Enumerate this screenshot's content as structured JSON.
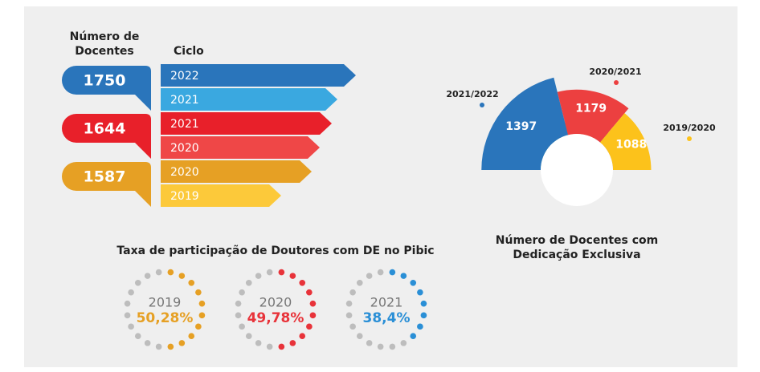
{
  "docentes": {
    "title": [
      "Número de",
      "Docentes"
    ],
    "ciclo_label": "Ciclo",
    "groups": [
      {
        "value": 1750,
        "color": "#2a75bb",
        "cycles": [
          {
            "label": "2022",
            "color": "#2a75bb"
          },
          {
            "label": "2021",
            "color": "#3aa8e0"
          }
        ]
      },
      {
        "value": 1644,
        "color": "#e8202a",
        "cycles": [
          {
            "label": "2021",
            "color": "#e8202a"
          },
          {
            "label": "2020",
            "color": "#ef4747"
          }
        ]
      },
      {
        "value": 1587,
        "color": "#e6a024",
        "cycles": [
          {
            "label": "2020",
            "color": "#e6a024"
          },
          {
            "label": "2019",
            "color": "#fcc93a"
          }
        ]
      }
    ]
  },
  "chart_data": [
    {
      "type": "polar_area",
      "title": [
        "Número de Docentes com",
        "Dedicação Exclusiva"
      ],
      "categories": [
        "2021/2022",
        "2020/2021",
        "2019/2020"
      ],
      "values": [
        1397,
        1179,
        1088
      ],
      "colors": [
        "#2a75bb",
        "#ec4040",
        "#fcc21b"
      ]
    },
    {
      "type": "dot_ring",
      "title": "Taxa de participação de Doutores com DE no Pibic",
      "categories": [
        "2019",
        "2020",
        "2021"
      ],
      "values": [
        50.28,
        49.78,
        38.4
      ],
      "value_labels": [
        "50,28%",
        "49,78%",
        "38,4%"
      ],
      "colors": [
        "#e6a024",
        "#e8333a",
        "#2a8fd6"
      ]
    }
  ]
}
